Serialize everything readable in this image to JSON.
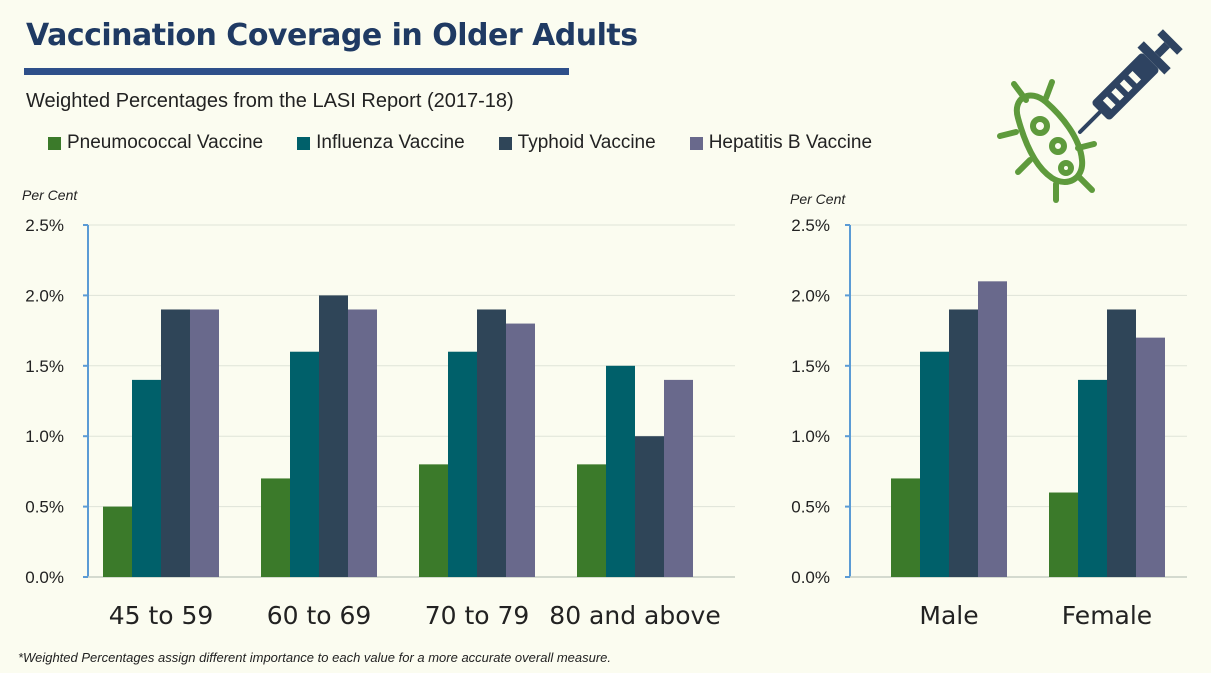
{
  "header": {
    "title": "Vaccination Coverage in Older Adults",
    "subtitle": "Weighted Percentages from the LASI Report (2017-18)"
  },
  "legend": [
    {
      "label": "Pneumococcal Vaccine",
      "color": "#3b7a2a"
    },
    {
      "label": "Influenza Vaccine",
      "color": "#00606a"
    },
    {
      "label": "Typhoid Vaccine",
      "color": "#2f4558"
    },
    {
      "label": "Hepatitis B Vaccine",
      "color": "#69698c"
    }
  ],
  "footnote": "*Weighted Percentages assign different importance to each value for a more accurate overall measure.",
  "icons": {
    "syringe": "syringe-icon",
    "virus": "virus-icon"
  },
  "chart_data": [
    {
      "type": "bar",
      "ylabel": "Per Cent",
      "ylim": [
        0,
        2.5
      ],
      "yticks": [
        "0.0%",
        "0.5%",
        "1.0%",
        "1.5%",
        "2.0%",
        "2.5%"
      ],
      "categories": [
        "45 to 59",
        "60 to 69",
        "70 to 79",
        "80 and above"
      ],
      "series": [
        {
          "name": "Pneumococcal Vaccine",
          "values": [
            0.5,
            0.7,
            0.8,
            0.8
          ]
        },
        {
          "name": "Influenza Vaccine",
          "values": [
            1.4,
            1.6,
            1.6,
            1.5
          ]
        },
        {
          "name": "Typhoid Vaccine",
          "values": [
            1.9,
            2.0,
            1.9,
            1.0
          ]
        },
        {
          "name": "Hepatitis B Vaccine",
          "values": [
            1.9,
            1.9,
            1.8,
            1.4
          ]
        }
      ],
      "grid": true
    },
    {
      "type": "bar",
      "ylabel": "Per Cent",
      "ylim": [
        0,
        2.5
      ],
      "yticks": [
        "0.0%",
        "0.5%",
        "1.0%",
        "1.5%",
        "2.0%",
        "2.5%"
      ],
      "categories": [
        "Male",
        "Female"
      ],
      "series": [
        {
          "name": "Pneumococcal Vaccine",
          "values": [
            0.7,
            0.6
          ]
        },
        {
          "name": "Influenza Vaccine",
          "values": [
            1.6,
            1.4
          ]
        },
        {
          "name": "Typhoid Vaccine",
          "values": [
            1.9,
            1.9
          ]
        },
        {
          "name": "Hepatitis B Vaccine",
          "values": [
            2.1,
            1.7
          ]
        }
      ],
      "grid": true
    }
  ]
}
